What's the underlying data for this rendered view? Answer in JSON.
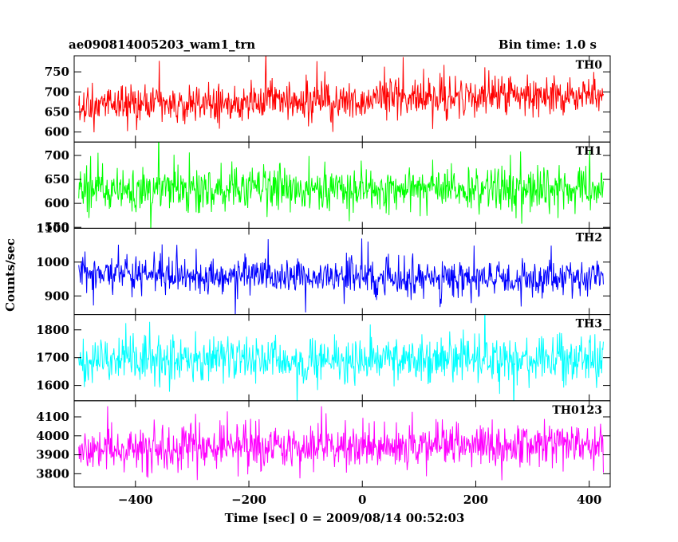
{
  "header": {
    "title_left": "ae090814005203_wam1_trn",
    "title_right": "Bin time: 1.0 s"
  },
  "chart_data": {
    "type": "line",
    "xlabel": "Time [sec] 0 = 2009/08/14 00:52:03",
    "ylabel": "Counts/sec",
    "xlim": [
      -508,
      437
    ],
    "x_data_range": [
      -500,
      425
    ],
    "x_ticks": [
      -400,
      -200,
      0,
      200,
      400
    ],
    "bin_time_s": 1.0,
    "panels": [
      {
        "name": "TH0",
        "color": "#ff0000",
        "ylim": [
          575,
          790
        ],
        "y_ticks": [
          600,
          650,
          700,
          750
        ],
        "mean_start": 665,
        "mean_end": 695,
        "noise": 28,
        "spike": 90
      },
      {
        "name": "TH1",
        "color": "#00ff00",
        "ylim": [
          548,
          728
        ],
        "y_ticks": [
          550,
          600,
          650,
          700
        ],
        "mean_start": 630,
        "mean_end": 630,
        "noise": 25,
        "spike": 80
      },
      {
        "name": "TH2",
        "color": "#0000ff",
        "ylim": [
          845,
          1100
        ],
        "y_ticks": [
          900,
          1000,
          1100
        ],
        "mean_start": 965,
        "mean_end": 950,
        "noise": 30,
        "spike": 110
      },
      {
        "name": "TH3",
        "color": "#00ffff",
        "ylim": [
          1545,
          1855
        ],
        "y_ticks": [
          1600,
          1700,
          1800
        ],
        "mean_start": 1690,
        "mean_end": 1690,
        "noise": 45,
        "spike": 150
      },
      {
        "name": "TH0123",
        "color": "#ff00ff",
        "ylim": [
          3730,
          4185
        ],
        "y_ticks": [
          3800,
          3900,
          4000,
          4100
        ],
        "mean_start": 3935,
        "mean_end": 3955,
        "noise": 65,
        "spike": 220
      }
    ]
  }
}
